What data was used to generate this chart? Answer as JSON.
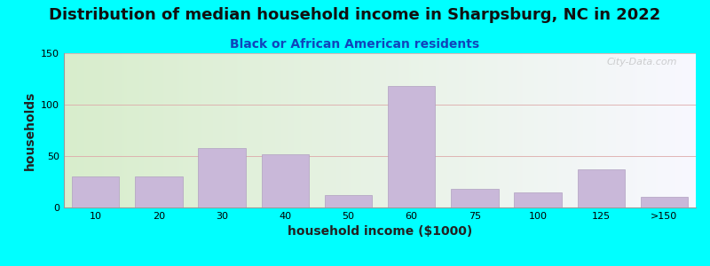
{
  "title": "Distribution of median household income in Sharpsburg, NC in 2022",
  "subtitle": "Black or African American residents",
  "xlabel": "household income ($1000)",
  "ylabel": "households",
  "background_outer": "#00FFFF",
  "bar_color": "#C9B8D9",
  "bar_edge_color": "#B0A0C0",
  "categories": [
    "10",
    "20",
    "30",
    "40",
    "50",
    "60",
    "75",
    "100",
    "125",
    ">150"
  ],
  "values": [
    30,
    30,
    58,
    52,
    12,
    118,
    18,
    15,
    37,
    10
  ],
  "ylim": [
    0,
    150
  ],
  "yticks": [
    0,
    50,
    100,
    150
  ],
  "title_fontsize": 13,
  "subtitle_fontsize": 10,
  "axis_label_fontsize": 10,
  "tick_fontsize": 8,
  "watermark": "City-Data.com",
  "grad_left": "#d8edcc",
  "grad_right": "#f0f0f8"
}
